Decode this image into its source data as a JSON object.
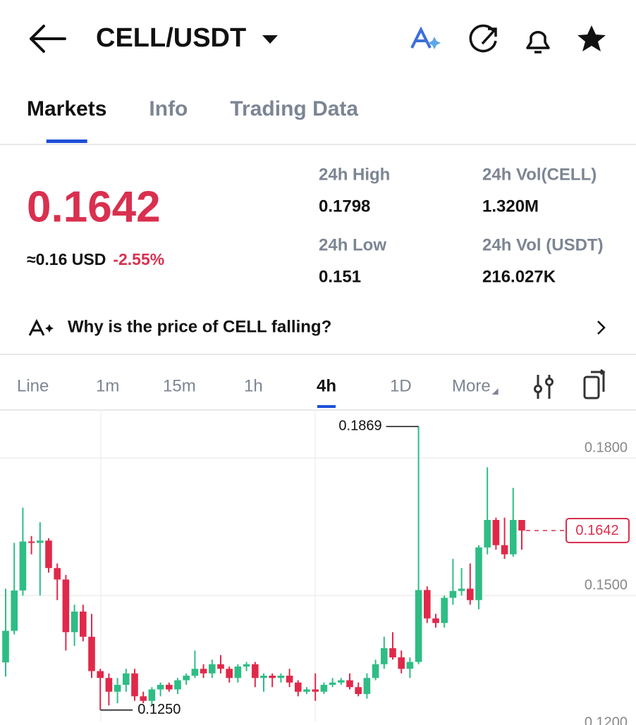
{
  "header": {
    "pair": "CELL/USDT"
  },
  "tabs": [
    "Markets",
    "Info",
    "Trading Data"
  ],
  "price": {
    "last": "0.1642",
    "usd": "≈0.16 USD",
    "change": "-2.55%"
  },
  "stats": [
    {
      "label": "24h High",
      "value": "0.1798"
    },
    {
      "label": "24h Vol(CELL)",
      "value": "1.320M"
    },
    {
      "label": "24h Low",
      "value": "0.151"
    },
    {
      "label": "24h Vol (USDT)",
      "value": "216.027K"
    }
  ],
  "insight": "Why is the price of CELL falling?",
  "intervals": [
    "Line",
    "1m",
    "15m",
    "1h",
    "4h",
    "1D",
    "More"
  ],
  "chart_data": {
    "type": "candlestick",
    "up_color": "#2ebd85",
    "down_color": "#e0294a",
    "ylim": [
      0.1225,
      0.1905
    ],
    "yticks": [
      {
        "value": 0.18,
        "label": "0.1800"
      },
      {
        "value": 0.15,
        "label": "0.1500"
      },
      {
        "value": 0.12,
        "label": "0.1200"
      }
    ],
    "grid": true,
    "annotations": [
      {
        "value": 0.1869,
        "label": "0.1869"
      },
      {
        "value": 0.125,
        "label": "0.1250"
      }
    ],
    "last_price": {
      "value": 0.1642,
      "label": "0.1642"
    },
    "candles": [
      [
        0.1354,
        0.1515,
        0.1323,
        0.1423
      ],
      [
        0.1423,
        0.1615,
        0.1415,
        0.1511
      ],
      [
        0.1511,
        0.1692,
        0.15,
        0.1618
      ],
      [
        0.1618,
        0.163,
        0.159,
        0.1615
      ],
      [
        0.1615,
        0.166,
        0.15,
        0.162
      ],
      [
        0.162,
        0.1625,
        0.155,
        0.156
      ],
      [
        0.156,
        0.157,
        0.149,
        0.1535
      ],
      [
        0.1535,
        0.1545,
        0.138,
        0.142
      ],
      [
        0.142,
        0.148,
        0.139,
        0.1465
      ],
      [
        0.1465,
        0.148,
        0.14,
        0.141
      ],
      [
        0.141,
        0.146,
        0.132,
        0.1335
      ],
      [
        0.1335,
        0.134,
        0.125,
        0.132
      ],
      [
        0.132,
        0.133,
        0.126,
        0.129
      ],
      [
        0.129,
        0.132,
        0.1265,
        0.1305
      ],
      [
        0.1305,
        0.134,
        0.129,
        0.133
      ],
      [
        0.133,
        0.134,
        0.127,
        0.128
      ],
      [
        0.128,
        0.129,
        0.1265,
        0.127
      ],
      [
        0.127,
        0.13,
        0.126,
        0.1295
      ],
      [
        0.1295,
        0.131,
        0.128,
        0.1305
      ],
      [
        0.1305,
        0.131,
        0.129,
        0.1295
      ],
      [
        0.1295,
        0.132,
        0.1285,
        0.1315
      ],
      [
        0.1315,
        0.133,
        0.1305,
        0.1325
      ],
      [
        0.1325,
        0.138,
        0.132,
        0.134
      ],
      [
        0.134,
        0.135,
        0.132,
        0.133
      ],
      [
        0.133,
        0.136,
        0.132,
        0.135
      ],
      [
        0.135,
        0.137,
        0.133,
        0.134
      ],
      [
        0.134,
        0.1345,
        0.131,
        0.132
      ],
      [
        0.132,
        0.135,
        0.131,
        0.1345
      ],
      [
        0.1345,
        0.1355,
        0.1335,
        0.135
      ],
      [
        0.135,
        0.1355,
        0.13,
        0.132
      ],
      [
        0.132,
        0.133,
        0.129,
        0.1325
      ],
      [
        0.1325,
        0.133,
        0.13,
        0.132
      ],
      [
        0.132,
        0.133,
        0.131,
        0.1325
      ],
      [
        0.1325,
        0.134,
        0.13,
        0.131
      ],
      [
        0.131,
        0.1315,
        0.128,
        0.129
      ],
      [
        0.129,
        0.13,
        0.1285,
        0.1295
      ],
      [
        0.1295,
        0.133,
        0.127,
        0.129
      ],
      [
        0.129,
        0.131,
        0.1285,
        0.1305
      ],
      [
        0.1305,
        0.132,
        0.13,
        0.131
      ],
      [
        0.131,
        0.132,
        0.1305,
        0.1315
      ],
      [
        0.1315,
        0.133,
        0.1295,
        0.13
      ],
      [
        0.13,
        0.131,
        0.128,
        0.1285
      ],
      [
        0.1285,
        0.133,
        0.1275,
        0.132
      ],
      [
        0.132,
        0.136,
        0.1315,
        0.135
      ],
      [
        0.135,
        0.141,
        0.134,
        0.1385
      ],
      [
        0.1385,
        0.142,
        0.136,
        0.1365
      ],
      [
        0.1365,
        0.138,
        0.133,
        0.134
      ],
      [
        0.134,
        0.1365,
        0.132,
        0.1355
      ],
      [
        0.1355,
        0.1869,
        0.135,
        0.1512
      ],
      [
        0.1512,
        0.152,
        0.144,
        0.145
      ],
      [
        0.145,
        0.146,
        0.143,
        0.144
      ],
      [
        0.144,
        0.15,
        0.143,
        0.1495
      ],
      [
        0.1495,
        0.158,
        0.148,
        0.151
      ],
      [
        0.151,
        0.156,
        0.15,
        0.1515
      ],
      [
        0.1515,
        0.157,
        0.148,
        0.149
      ],
      [
        0.149,
        0.161,
        0.147,
        0.1605
      ],
      [
        0.1605,
        0.178,
        0.159,
        0.1665
      ],
      [
        0.1665,
        0.167,
        0.16,
        0.161
      ],
      [
        0.161,
        0.167,
        0.158,
        0.159
      ],
      [
        0.159,
        0.1735,
        0.1585,
        0.1665
      ],
      [
        0.1665,
        0.1665,
        0.16,
        0.1642
      ]
    ]
  }
}
